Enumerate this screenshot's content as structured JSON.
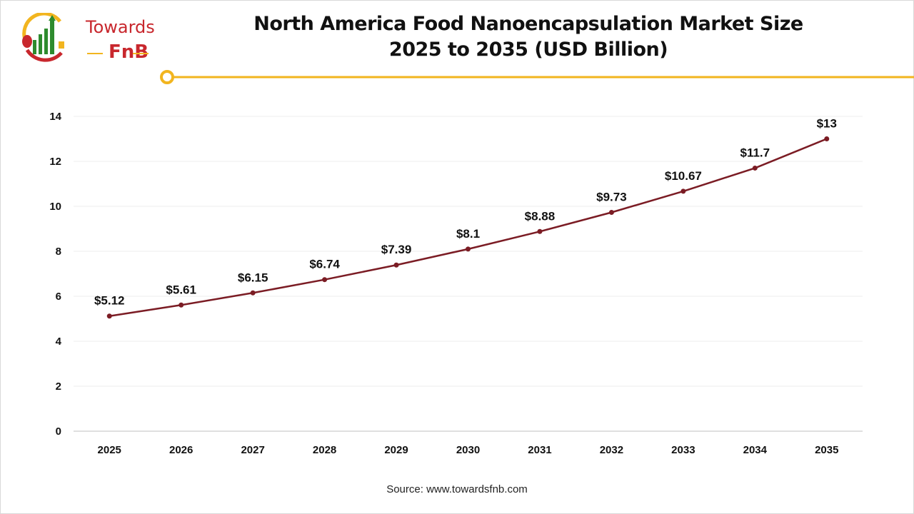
{
  "logo": {
    "text_top": "Towards",
    "text_bottom": "FnB"
  },
  "chart_data": {
    "type": "line",
    "title": "North America Food Nanoencapsulation Market Size",
    "subtitle": "2025 to 2035 (USD Billion)",
    "categories": [
      "2025",
      "2026",
      "2027",
      "2028",
      "2029",
      "2030",
      "2031",
      "2032",
      "2033",
      "2034",
      "2035"
    ],
    "values": [
      5.12,
      5.61,
      6.15,
      6.74,
      7.39,
      8.1,
      8.88,
      9.73,
      10.67,
      11.7,
      13
    ],
    "data_labels": [
      "$5.12",
      "$5.61",
      "$6.15",
      "$6.74",
      "$7.39",
      "$8.1",
      "$8.88",
      "$9.73",
      "$10.67",
      "$11.7",
      "$13"
    ],
    "ylim": [
      0,
      14
    ],
    "yticks": [
      0,
      2,
      4,
      6,
      8,
      10,
      12,
      14
    ],
    "grid": true,
    "legend": "none",
    "xlabel": "",
    "ylabel": "",
    "line_color": "#7b1c24"
  },
  "source": "Source: www.towardsfnb.com",
  "colors": {
    "accent": "#f2b51f",
    "brand_red": "#c8272d",
    "brand_green": "#2e8b2e"
  }
}
